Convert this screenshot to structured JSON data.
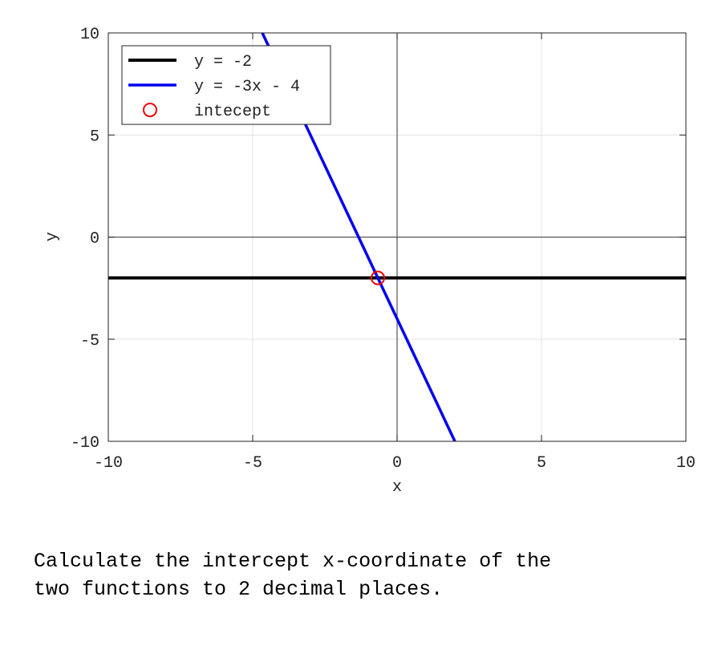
{
  "chart_data": {
    "type": "line",
    "xlabel": "x",
    "ylabel": "y",
    "xlim": [
      -10,
      10
    ],
    "ylim": [
      -10,
      10
    ],
    "xticks": [
      -10,
      -5,
      0,
      5,
      10
    ],
    "yticks": [
      -10,
      -5,
      0,
      5,
      10
    ],
    "grid": true,
    "legend": "upper left",
    "series": [
      {
        "name": "y = -2",
        "color": "#000000",
        "x": [
          -10,
          10
        ],
        "values": [
          -2,
          -2
        ]
      },
      {
        "name": "y = -3x - 4",
        "color": "#0000ee",
        "x": [
          -4.667,
          2
        ],
        "values": [
          10,
          -10
        ]
      },
      {
        "name": "intecept",
        "color": "#ee0000",
        "type": "scatter",
        "x": [
          -0.667
        ],
        "values": [
          -2
        ]
      }
    ]
  },
  "question": {
    "lines": [
      "Calculate the intercept x-coordinate of the",
      "two functions to 2 decimal places."
    ]
  }
}
